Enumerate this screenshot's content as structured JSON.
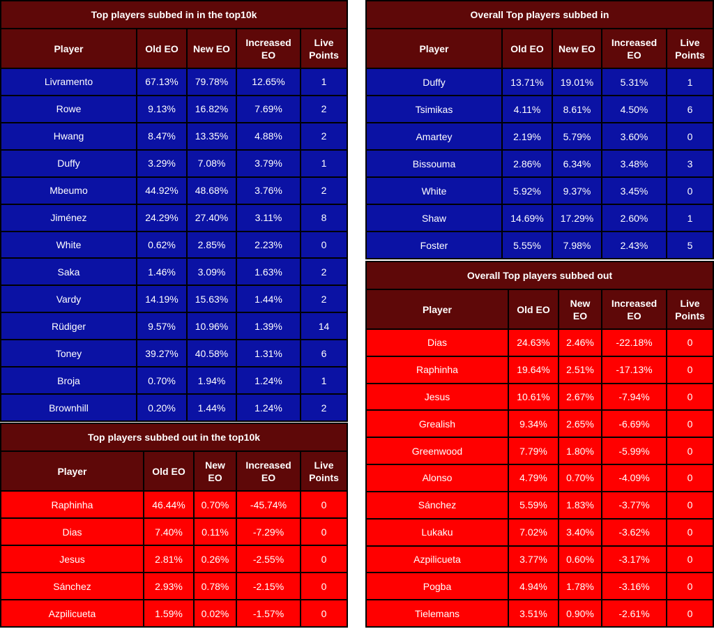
{
  "tables": [
    {
      "title": "Top players subbed in in the top10k",
      "columns": [
        "Player",
        "Old EO",
        "New EO",
        "Increased EO",
        "Live Points"
      ],
      "rows": [
        [
          "Livramento",
          "67.13%",
          "79.78%",
          "12.65%",
          1
        ],
        [
          "Rowe",
          "9.13%",
          "16.82%",
          "7.69%",
          2
        ],
        [
          "Hwang",
          "8.47%",
          "13.35%",
          "4.88%",
          2
        ],
        [
          "Duffy",
          "3.29%",
          "7.08%",
          "3.79%",
          1
        ],
        [
          "Mbeumo",
          "44.92%",
          "48.68%",
          "3.76%",
          2
        ],
        [
          "Jiménez",
          "24.29%",
          "27.40%",
          "3.11%",
          8
        ],
        [
          "White",
          "0.62%",
          "2.85%",
          "2.23%",
          0
        ],
        [
          "Saka",
          "1.46%",
          "3.09%",
          "1.63%",
          2
        ],
        [
          "Vardy",
          "14.19%",
          "15.63%",
          "1.44%",
          2
        ],
        [
          "Rüdiger",
          "9.57%",
          "10.96%",
          "1.39%",
          14
        ],
        [
          "Toney",
          "39.27%",
          "40.58%",
          "1.31%",
          6
        ],
        [
          "Broja",
          "0.70%",
          "1.94%",
          "1.24%",
          1
        ],
        [
          "Brownhill",
          "0.20%",
          "1.44%",
          "1.24%",
          2
        ]
      ]
    },
    {
      "title": "Top players subbed out in the top10k",
      "columns": [
        "Player",
        "Old EO",
        "New EO",
        "Increased EO",
        "Live Points"
      ],
      "rows": [
        [
          "Raphinha",
          "46.44%",
          "0.70%",
          "-45.74%",
          0
        ],
        [
          "Dias",
          "7.40%",
          "0.11%",
          "-7.29%",
          0
        ],
        [
          "Jesus",
          "2.81%",
          "0.26%",
          "-2.55%",
          0
        ],
        [
          "Sánchez",
          "2.93%",
          "0.78%",
          "-2.15%",
          0
        ],
        [
          "Azpilicueta",
          "1.59%",
          "0.02%",
          "-1.57%",
          0
        ]
      ]
    },
    {
      "title": "Overall Top players subbed in",
      "columns": [
        "Player",
        "Old EO",
        "New EO",
        "Increased EO",
        "Live Points"
      ],
      "rows": [
        [
          "Duffy",
          "13.71%",
          "19.01%",
          "5.31%",
          1
        ],
        [
          "Tsimikas",
          "4.11%",
          "8.61%",
          "4.50%",
          6
        ],
        [
          "Amartey",
          "2.19%",
          "5.79%",
          "3.60%",
          0
        ],
        [
          "Bissouma",
          "2.86%",
          "6.34%",
          "3.48%",
          3
        ],
        [
          "White",
          "5.92%",
          "9.37%",
          "3.45%",
          0
        ],
        [
          "Shaw",
          "14.69%",
          "17.29%",
          "2.60%",
          1
        ],
        [
          "Foster",
          "5.55%",
          "7.98%",
          "2.43%",
          5
        ]
      ]
    },
    {
      "title": "Overall Top players subbed out",
      "columns": [
        "Player",
        "Old EO",
        "New EO",
        "Increased EO",
        "Live Points"
      ],
      "rows": [
        [
          "Dias",
          "24.63%",
          "2.46%",
          "-22.18%",
          0
        ],
        [
          "Raphinha",
          "19.64%",
          "2.51%",
          "-17.13%",
          0
        ],
        [
          "Jesus",
          "10.61%",
          "2.67%",
          "-7.94%",
          0
        ],
        [
          "Grealish",
          "9.34%",
          "2.65%",
          "-6.69%",
          0
        ],
        [
          "Greenwood",
          "7.79%",
          "1.80%",
          "-5.99%",
          0
        ],
        [
          "Alonso",
          "4.79%",
          "0.70%",
          "-4.09%",
          0
        ],
        [
          "Sánchez",
          "5.59%",
          "1.83%",
          "-3.77%",
          0
        ],
        [
          "Lukaku",
          "7.02%",
          "3.40%",
          "-3.62%",
          0
        ],
        [
          "Azpilicueta",
          "3.77%",
          "0.60%",
          "-3.17%",
          0
        ],
        [
          "Pogba",
          "4.94%",
          "1.78%",
          "-3.16%",
          0
        ],
        [
          "Tielemans",
          "3.51%",
          "0.90%",
          "-2.61%",
          0
        ]
      ]
    }
  ]
}
